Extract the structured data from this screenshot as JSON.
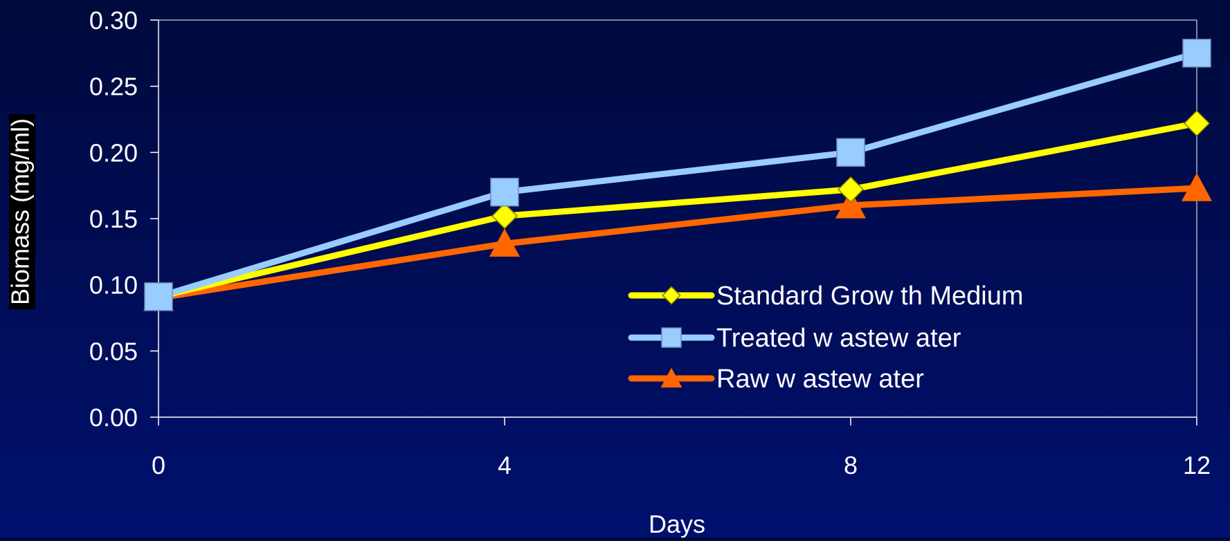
{
  "chart_data": {
    "type": "line",
    "title": "",
    "xlabel": "Days",
    "ylabel": "Biomass (mg/ml)",
    "x": [
      0,
      4,
      8,
      12
    ],
    "x_tick_labels": [
      "0",
      "4",
      "8",
      "12"
    ],
    "y_tick_labels": [
      "0.00",
      "0.05",
      "0.10",
      "0.15",
      "0.20",
      "0.25",
      "0.30"
    ],
    "xlim": [
      0,
      12
    ],
    "ylim": [
      0,
      0.3
    ],
    "grid": false,
    "legend_position": "lower-right inside plot",
    "series": [
      {
        "name": "Standard Grow th Medium",
        "values": [
          0.091,
          0.152,
          0.172,
          0.222
        ],
        "color": "#ffff00",
        "marker": "diamond"
      },
      {
        "name": "Treated w astew ater",
        "values": [
          0.091,
          0.17,
          0.2,
          0.275
        ],
        "color": "#99ccff",
        "marker": "square"
      },
      {
        "name": "Raw  w astew ater",
        "values": [
          0.09,
          0.131,
          0.16,
          0.173
        ],
        "color": "#ff6600",
        "marker": "triangle"
      }
    ],
    "colors": {
      "axis": "#ffffff",
      "text": "#ffffff",
      "ylabel_background": "#000000"
    }
  }
}
